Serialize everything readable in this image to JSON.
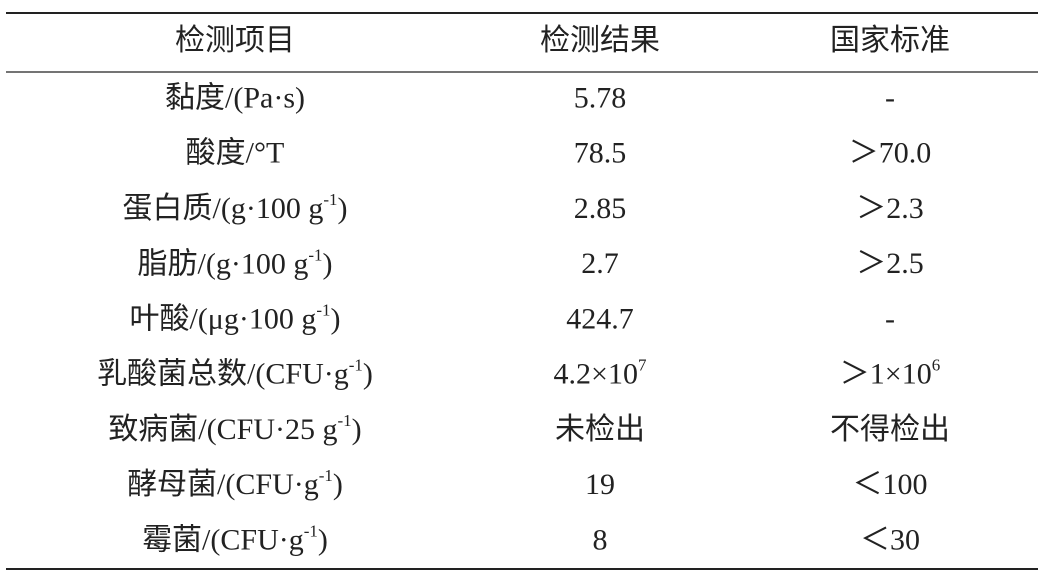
{
  "table": {
    "header": [
      "检测项目",
      "检测结果",
      "国家标准"
    ],
    "rows": [
      [
        "黏度/(Pa·s)",
        "5.78",
        "-"
      ],
      [
        "酸度/°T",
        "78.5",
        "＞70.0"
      ],
      [
        {
          "base": "蛋白质/(g·100 g",
          "sup": "-1",
          "tail": ")"
        },
        "2.85",
        "＞2.3"
      ],
      [
        {
          "base": "脂肪/(g·100 g",
          "sup": "-1",
          "tail": ")"
        },
        "2.7",
        "＞2.5"
      ],
      [
        {
          "base": "叶酸/(μg·100 g",
          "sup": "-1",
          "tail": ")"
        },
        "424.7",
        "-"
      ],
      [
        {
          "base": "乳酸菌总数/(CFU·g",
          "sup": "-1",
          "tail": ")"
        },
        {
          "base": "4.2×10",
          "sup": "7"
        },
        {
          "base": "＞1×10",
          "sup": "6"
        }
      ],
      [
        {
          "base": "致病菌/(CFU·25 g",
          "sup": "-1",
          "tail": ")"
        },
        "未检出",
        "不得检出"
      ],
      [
        {
          "base": "酵母菌/(CFU·g",
          "sup": "-1",
          "tail": ")"
        },
        "19",
        "＜100"
      ],
      [
        {
          "base": "霉菌/(CFU·g",
          "sup": "-1",
          "tail": ")"
        },
        "8",
        "＜30"
      ]
    ]
  }
}
